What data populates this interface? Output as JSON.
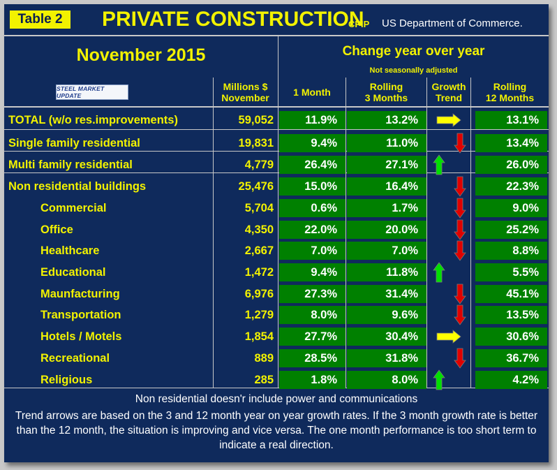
{
  "header": {
    "table_label": "Table 2",
    "title": "PRIVATE CONSTRUCTION",
    "acronym": "CPIP",
    "agency": "US Department of Commerce."
  },
  "period": "November 2015",
  "change_heading": "Change year over year",
  "nsa_note": "Not seasonally adjusted",
  "logo_text": "STEEL MARKET UPDATE",
  "columns": {
    "value_line1": "Millions $",
    "value_line2": "November",
    "one_month": "1 Month",
    "rolling3_line1": "Rolling",
    "rolling3_line2": "3 Months",
    "trend_line1": "Growth",
    "trend_line2": "Trend",
    "rolling12_line1": "Rolling",
    "rolling12_line2": "12 Months"
  },
  "rows": [
    {
      "name": "TOTAL (w/o res.improvements)",
      "value": "59,052",
      "one_month": "11.9%",
      "rolling_3": "13.2%",
      "trend": "flat",
      "rolling_12": "13.1%"
    },
    {
      "name": "Single family residential",
      "value": "19,831",
      "one_month": "9.4%",
      "rolling_3": "11.0%",
      "trend": "down",
      "rolling_12": "13.4%"
    },
    {
      "name": "Multi family residential",
      "value": "4,779",
      "one_month": "26.4%",
      "rolling_3": "27.1%",
      "trend": "up",
      "rolling_12": "26.0%"
    },
    {
      "name": "Non residential buildings",
      "value": "25,476",
      "one_month": "15.0%",
      "rolling_3": "16.4%",
      "trend": "down",
      "rolling_12": "22.3%"
    },
    {
      "name": "Commercial",
      "value": "5,704",
      "one_month": "0.6%",
      "rolling_3": "1.7%",
      "trend": "down",
      "rolling_12": "9.0%"
    },
    {
      "name": "Office",
      "value": "4,350",
      "one_month": "22.0%",
      "rolling_3": "20.0%",
      "trend": "down",
      "rolling_12": "25.2%"
    },
    {
      "name": "Healthcare",
      "value": "2,667",
      "one_month": "7.0%",
      "rolling_3": "7.0%",
      "trend": "down",
      "rolling_12": "8.8%"
    },
    {
      "name": "Educational",
      "value": "1,472",
      "one_month": "9.4%",
      "rolling_3": "11.8%",
      "trend": "up",
      "rolling_12": "5.5%"
    },
    {
      "name": "Maunfacturing",
      "value": "6,976",
      "one_month": "27.3%",
      "rolling_3": "31.4%",
      "trend": "down",
      "rolling_12": "45.1%"
    },
    {
      "name": "Transportation",
      "value": "1,279",
      "one_month": "8.0%",
      "rolling_3": "9.6%",
      "trend": "down",
      "rolling_12": "13.5%"
    },
    {
      "name": "Hotels / Motels",
      "value": "1,854",
      "one_month": "27.7%",
      "rolling_3": "30.4%",
      "trend": "flat",
      "rolling_12": "30.6%"
    },
    {
      "name": "Recreational",
      "value": "889",
      "one_month": "28.5%",
      "rolling_3": "31.8%",
      "trend": "down",
      "rolling_12": "36.7%"
    },
    {
      "name": "Religious",
      "value": "285",
      "one_month": "1.8%",
      "rolling_3": "8.0%",
      "trend": "up",
      "rolling_12": "4.2%"
    }
  ],
  "trend_colors": {
    "up": "#00e000",
    "down": "#e00000",
    "flat": "#ffff00"
  },
  "footer": {
    "note": "Non residential doesn'r include power and communications",
    "explanation": "Trend arrows are based on the 3 and 12 month year on year growth rates. If the 3 month growth rate is better than the 12 month, the situation is improving and vice versa. The one month performance is too short term to indicate a real direction."
  }
}
